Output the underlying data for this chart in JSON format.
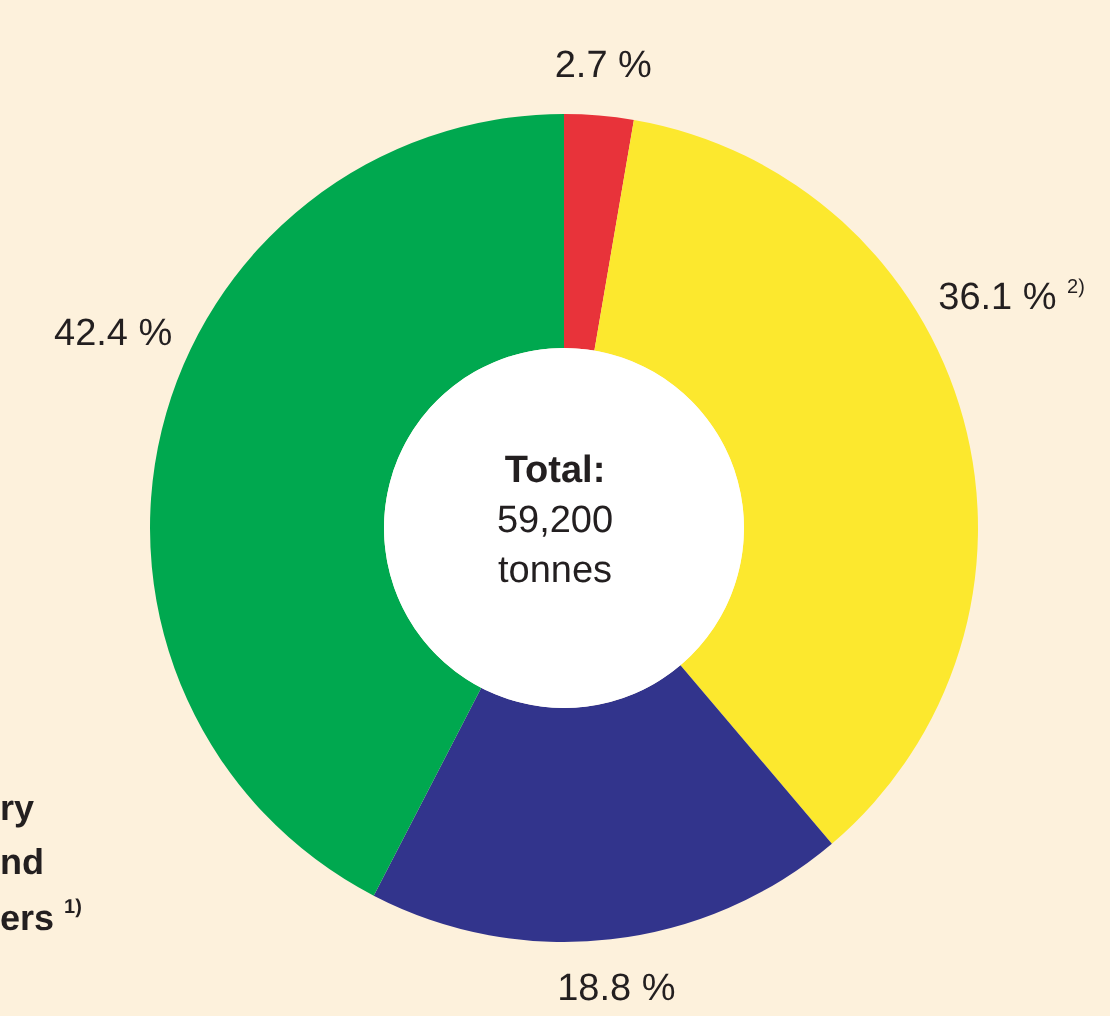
{
  "chart_data": {
    "type": "donut",
    "categories": [
      null,
      null,
      null,
      null
    ],
    "values": [
      2.7,
      36.1,
      18.8,
      42.4
    ],
    "colors": [
      "#e8333a",
      "#fce82e",
      "#32348c",
      "#00a84f"
    ],
    "value_labels": [
      "2.7 %",
      "36.1 % $^{2)}$",
      "18.8 %",
      "42.4 %"
    ],
    "annotations": [
      "Total:",
      "59,200",
      "tonnes",
      "ry",
      "nd",
      "ers $^{1)}$"
    ]
  }
}
